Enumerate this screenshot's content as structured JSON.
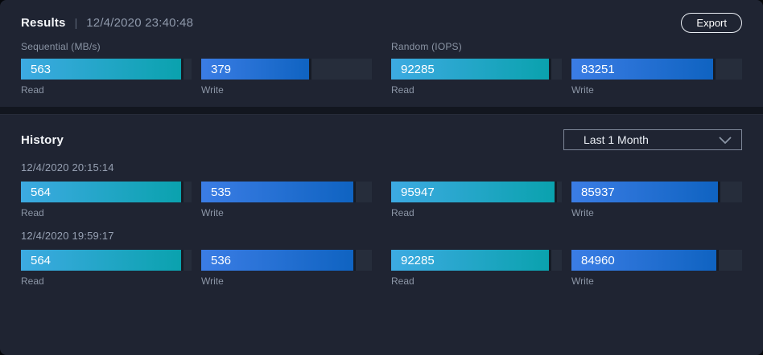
{
  "colors": {
    "teal_start": "#3DAAE2",
    "teal_end": "#0AA2AE",
    "blue_start": "#3B7DE5",
    "blue_end": "#0F63C1",
    "panel_bg": "#1F2432",
    "track_bg": "#262D3B"
  },
  "results": {
    "title": "Results",
    "separator": "|",
    "timestamp": "12/4/2020 23:40:48",
    "export_button": "Export",
    "groups": [
      {
        "label": "Sequential (MB/s)",
        "bars": [
          {
            "label": "Read",
            "value": 563,
            "max": 600
          },
          {
            "label": "Write",
            "value": 379,
            "max": 600
          }
        ]
      },
      {
        "label": "Random (IOPS)",
        "bars": [
          {
            "label": "Read",
            "value": 92285,
            "max": 100000
          },
          {
            "label": "Write",
            "value": 83251,
            "max": 100000
          }
        ]
      }
    ]
  },
  "history": {
    "title": "History",
    "range_dropdown": {
      "selected": "Last 1 Month"
    },
    "entries": [
      {
        "timestamp": "12/4/2020 20:15:14",
        "groups": [
          {
            "bars": [
              {
                "label": "Read",
                "value": 564,
                "max": 600
              },
              {
                "label": "Write",
                "value": 535,
                "max": 600
              }
            ]
          },
          {
            "bars": [
              {
                "label": "Read",
                "value": 95947,
                "max": 100000
              },
              {
                "label": "Write",
                "value": 85937,
                "max": 100000
              }
            ]
          }
        ]
      },
      {
        "timestamp": "12/4/2020 19:59:17",
        "groups": [
          {
            "bars": [
              {
                "label": "Read",
                "value": 564,
                "max": 600
              },
              {
                "label": "Write",
                "value": 536,
                "max": 600
              }
            ]
          },
          {
            "bars": [
              {
                "label": "Read",
                "value": 92285,
                "max": 100000
              },
              {
                "label": "Write",
                "value": 84960,
                "max": 100000
              }
            ]
          }
        ]
      }
    ]
  }
}
